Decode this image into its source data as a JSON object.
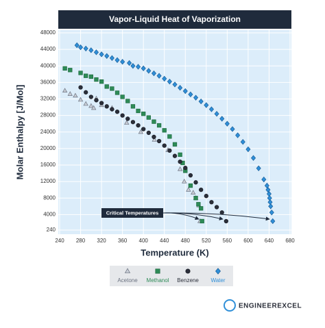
{
  "chart_data": {
    "type": "scatter",
    "title": "Vapor-Liquid Heat of Vaporization",
    "x_label": "Temperature (K)",
    "y_label": "Molar Enthalpy [J/Mol]",
    "xlim": [
      240,
      680
    ],
    "ylim": [
      240,
      48000
    ],
    "xticks": [
      240,
      280,
      320,
      360,
      400,
      440,
      480,
      520,
      560,
      600,
      640,
      680
    ],
    "yticks": [
      240,
      4000,
      8000,
      12000,
      16000,
      20000,
      24000,
      28000,
      32000,
      36000,
      40000,
      44000,
      48000
    ],
    "grid": true,
    "annotation": "Critical Temperatures",
    "series": [
      {
        "name": "Acetone",
        "marker": "triangle",
        "color": "#c9ced6",
        "edge": "#6b7280",
        "x": [
          250,
          260,
          270,
          280,
          290,
          300,
          305,
          310,
          320,
          340,
          368,
          395,
          421,
          447,
          470,
          478,
          486,
          495,
          500,
          506,
          508
        ],
        "values": [
          34000,
          33200,
          32800,
          31800,
          30800,
          30300,
          29800,
          32100,
          30500,
          29800,
          26200,
          24000,
          22100,
          19600,
          15000,
          12000,
          10000,
          9300,
          8000,
          6200,
          2400
        ]
      },
      {
        "name": "Methanol",
        "marker": "square",
        "color": "#2e8b57",
        "edge": "#1f6b40",
        "x": [
          250,
          260,
          280,
          290,
          300,
          310,
          320,
          330,
          340,
          350,
          360,
          370,
          380,
          390,
          400,
          410,
          420,
          430,
          440,
          450,
          460,
          470,
          475,
          480,
          490,
          500,
          505,
          510,
          512
        ],
        "values": [
          39400,
          39000,
          38300,
          37600,
          37400,
          36700,
          36200,
          35000,
          34500,
          33500,
          32500,
          31500,
          30200,
          29100,
          28400,
          27500,
          26500,
          25600,
          24400,
          22900,
          21000,
          18500,
          16500,
          14600,
          11000,
          8000,
          6500,
          5500,
          2400
        ]
      },
      {
        "name": "Benzene",
        "marker": "circle",
        "color": "#2b2f3a",
        "edge": "#1a1d25",
        "x": [
          280,
          290,
          300,
          310,
          320,
          330,
          340,
          350,
          360,
          370,
          380,
          390,
          400,
          410,
          420,
          430,
          440,
          450,
          460,
          470,
          480,
          490,
          500,
          510,
          520,
          530,
          540,
          550,
          558
        ],
        "values": [
          34800,
          33600,
          32500,
          31700,
          31000,
          30200,
          29500,
          28900,
          28000,
          27200,
          26400,
          25600,
          24700,
          23800,
          22800,
          21800,
          20700,
          19500,
          18200,
          16800,
          15300,
          13500,
          11800,
          10000,
          8500,
          7000,
          5800,
          4500,
          2400
        ]
      },
      {
        "name": "Water",
        "marker": "diamond",
        "color": "#2f8fd8",
        "edge": "#1b5f99",
        "x": [
          273,
          280,
          290,
          300,
          310,
          320,
          330,
          340,
          350,
          360,
          373,
          380,
          390,
          400,
          410,
          420,
          430,
          440,
          450,
          460,
          470,
          480,
          490,
          500,
          510,
          520,
          530,
          540,
          550,
          560,
          570,
          580,
          590,
          600,
          610,
          620,
          630,
          636,
          638,
          640,
          641,
          642,
          643,
          645,
          647
        ],
        "values": [
          45000,
          44500,
          44200,
          43800,
          43300,
          42800,
          42400,
          41900,
          41400,
          41000,
          40700,
          40000,
          39800,
          39400,
          38800,
          38200,
          37600,
          36900,
          36200,
          35500,
          34700,
          33900,
          33100,
          32300,
          31400,
          30500,
          29500,
          28400,
          27200,
          26000,
          24700,
          23200,
          21600,
          19800,
          17700,
          15200,
          12500,
          11000,
          10000,
          9000,
          8000,
          7000,
          6000,
          4500,
          2400
        ]
      }
    ],
    "footer": "ENGINEEREXCEL"
  }
}
